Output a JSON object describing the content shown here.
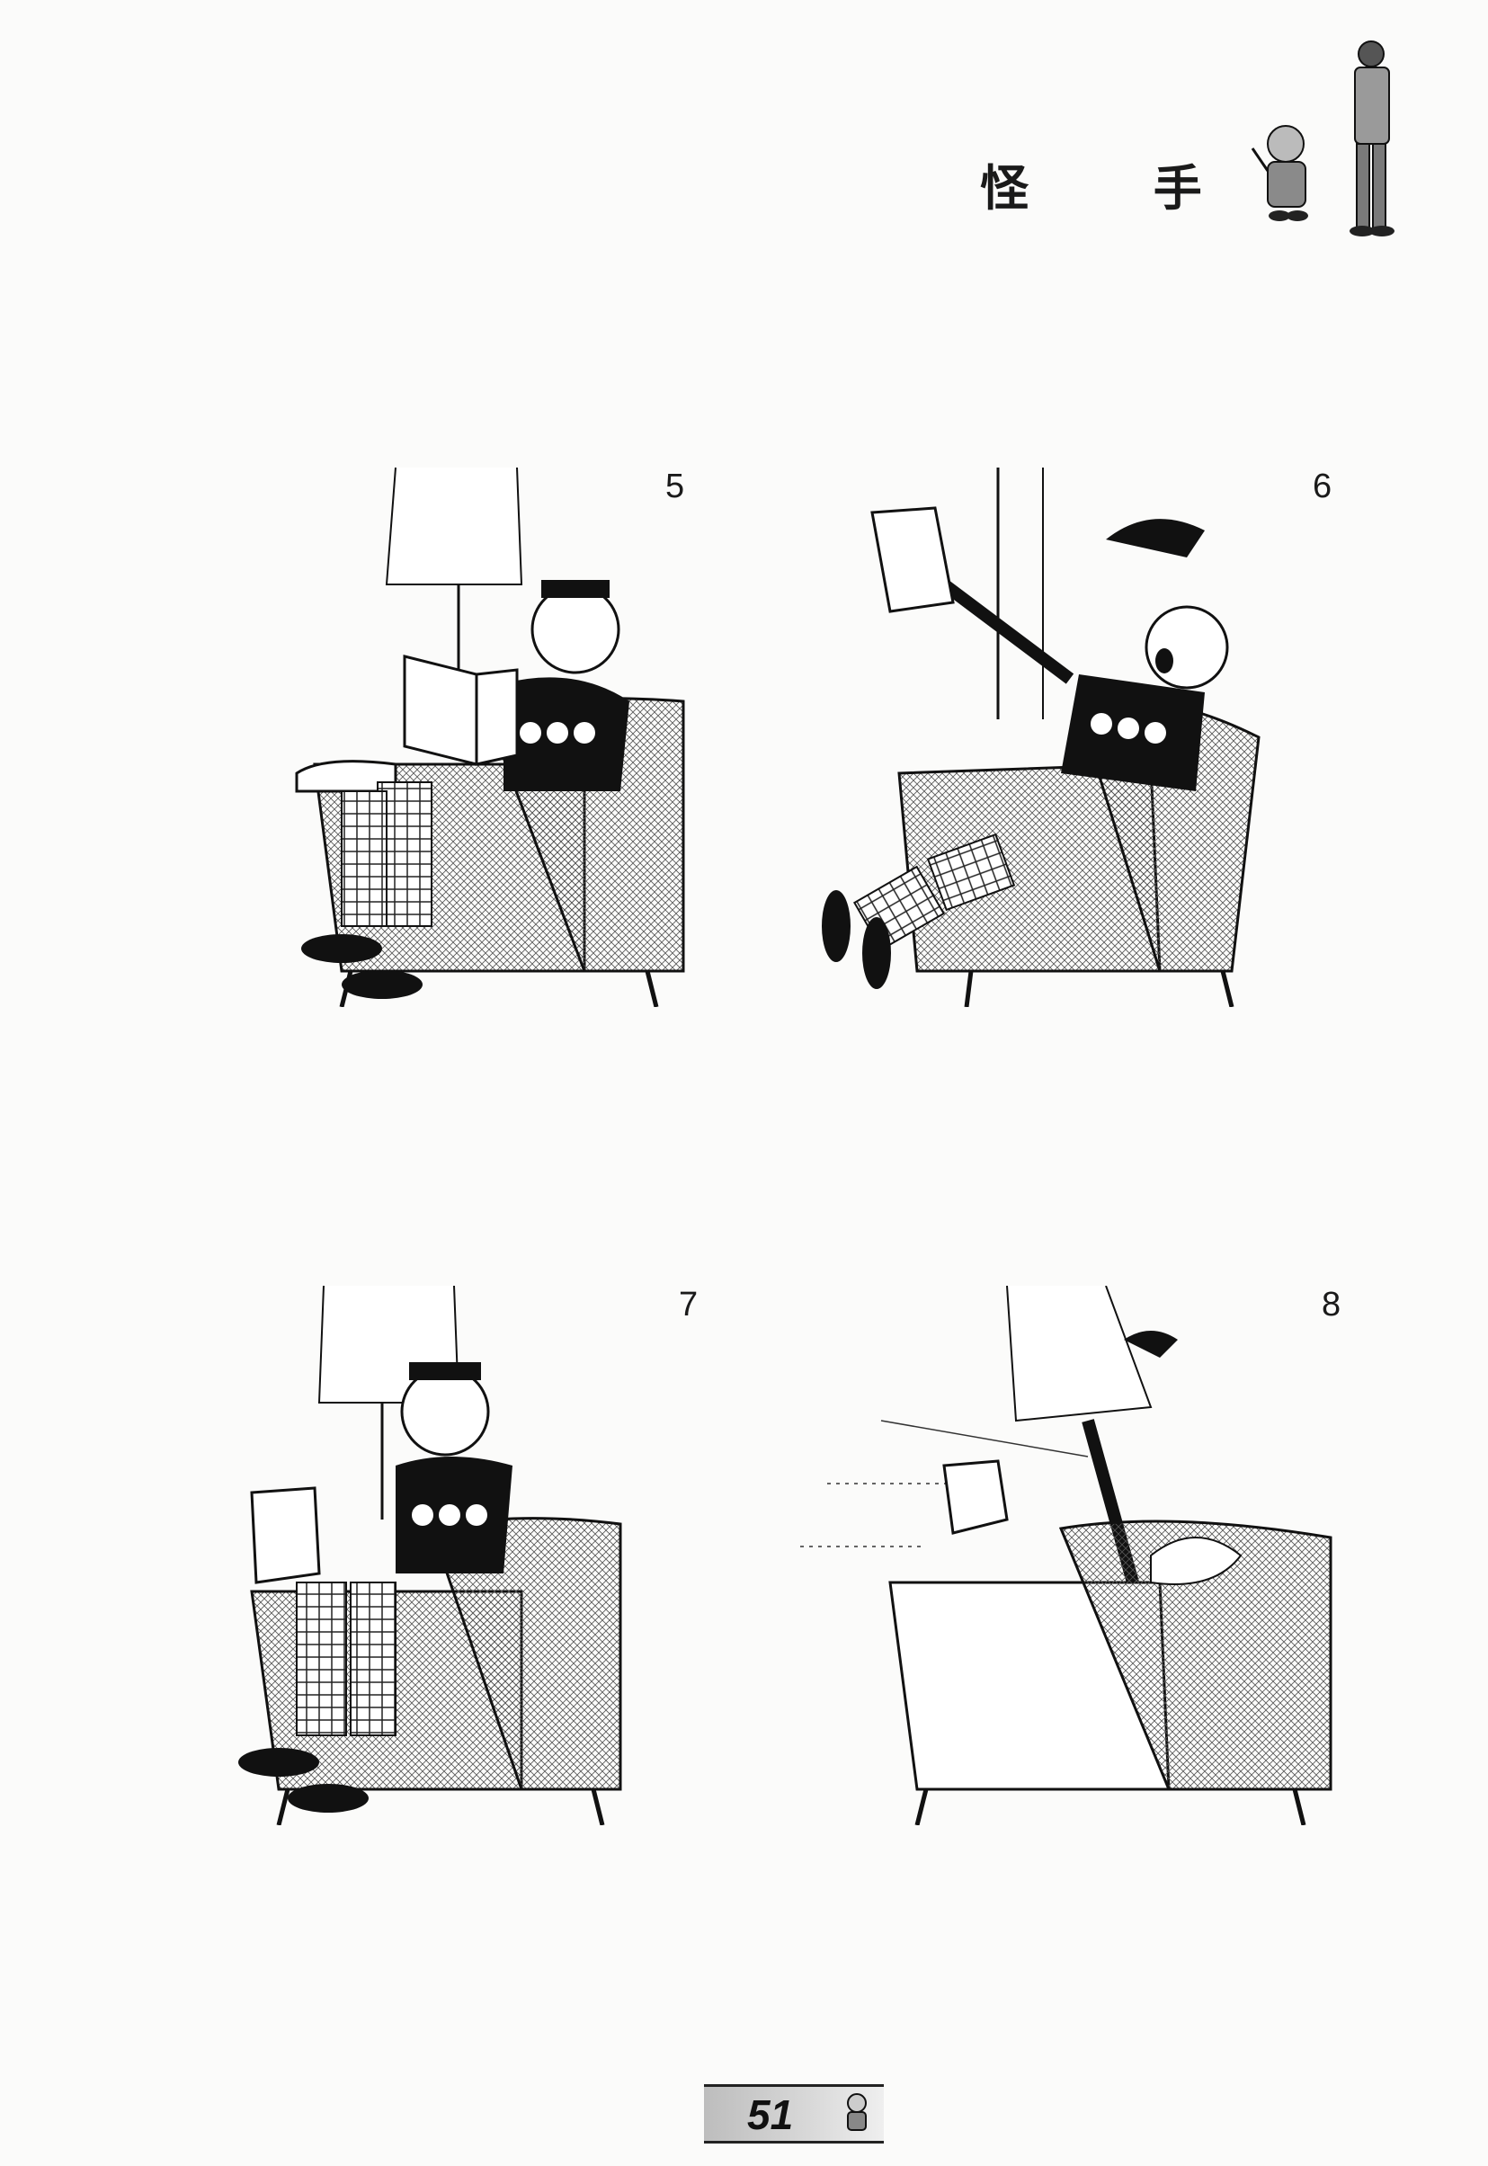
{
  "header": {
    "title": "怪 手"
  },
  "panels": [
    {
      "number": "5"
    },
    {
      "number": "6"
    },
    {
      "number": "7"
    },
    {
      "number": "8"
    }
  ],
  "footer": {
    "page_number": "51"
  }
}
